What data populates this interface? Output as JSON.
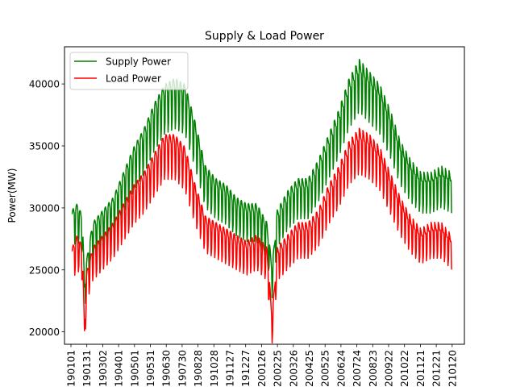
{
  "chart_data": {
    "type": "line",
    "title": "Supply & Load Power",
    "xlabel": "",
    "ylabel": "Power(MW)",
    "ylim": [
      19000,
      43000
    ],
    "yticks": [
      20000,
      25000,
      30000,
      35000,
      40000
    ],
    "ytick_labels": [
      "20000",
      "25000",
      "30000",
      "35000",
      "40000"
    ],
    "xtick_labels": [
      "190101",
      "190131",
      "190302",
      "190401",
      "190501",
      "190531",
      "190630",
      "190730",
      "190828",
      "191028",
      "191127",
      "191227",
      "200126",
      "200225",
      "200326",
      "200425",
      "200525",
      "200624",
      "200724",
      "200823",
      "200922",
      "201022",
      "201121",
      "201221",
      "210120"
    ],
    "legend": {
      "placement": "top-left",
      "entries": [
        "Supply Power",
        "Load Power"
      ]
    },
    "grid": false,
    "series": [
      {
        "name": "Supply Power",
        "color": "#008000",
        "anchors": [
          [
            0,
            29500
          ],
          [
            10,
            30000
          ],
          [
            20,
            29000
          ],
          [
            24,
            23500
          ],
          [
            28,
            25500
          ],
          [
            40,
            28500
          ],
          [
            60,
            29500
          ],
          [
            80,
            30500
          ],
          [
            100,
            32500
          ],
          [
            120,
            34500
          ],
          [
            140,
            36000
          ],
          [
            160,
            38000
          ],
          [
            180,
            39500
          ],
          [
            200,
            40000
          ],
          [
            220,
            39500
          ],
          [
            240,
            36500
          ],
          [
            260,
            33000
          ],
          [
            280,
            32000
          ],
          [
            300,
            31500
          ],
          [
            320,
            30500
          ],
          [
            340,
            30000
          ],
          [
            360,
            30000
          ],
          [
            380,
            28500
          ],
          [
            390,
            25000
          ],
          [
            400,
            29500
          ],
          [
            420,
            31000
          ],
          [
            440,
            32000
          ],
          [
            460,
            32000
          ],
          [
            480,
            33500
          ],
          [
            500,
            35500
          ],
          [
            520,
            37500
          ],
          [
            540,
            40000
          ],
          [
            560,
            41500
          ],
          [
            580,
            40500
          ],
          [
            600,
            39500
          ],
          [
            620,
            37500
          ],
          [
            640,
            35000
          ],
          [
            660,
            33500
          ],
          [
            680,
            32500
          ],
          [
            700,
            32500
          ],
          [
            720,
            33000
          ],
          [
            740,
            32500
          ]
        ]
      },
      {
        "name": "Load Power",
        "color": "#ff0000",
        "anchors": [
          [
            0,
            26500
          ],
          [
            10,
            27500
          ],
          [
            20,
            26500
          ],
          [
            24,
            20000
          ],
          [
            28,
            24500
          ],
          [
            40,
            26500
          ],
          [
            60,
            27500
          ],
          [
            80,
            28500
          ],
          [
            100,
            30000
          ],
          [
            120,
            31500
          ],
          [
            140,
            32500
          ],
          [
            160,
            34000
          ],
          [
            180,
            35500
          ],
          [
            200,
            35500
          ],
          [
            220,
            34500
          ],
          [
            240,
            31500
          ],
          [
            260,
            29000
          ],
          [
            280,
            28500
          ],
          [
            300,
            28000
          ],
          [
            320,
            27500
          ],
          [
            340,
            27000
          ],
          [
            360,
            27500
          ],
          [
            380,
            26500
          ],
          [
            390,
            21000
          ],
          [
            400,
            26500
          ],
          [
            420,
            27500
          ],
          [
            440,
            28500
          ],
          [
            460,
            28500
          ],
          [
            480,
            29500
          ],
          [
            500,
            31500
          ],
          [
            520,
            33000
          ],
          [
            540,
            35000
          ],
          [
            560,
            36000
          ],
          [
            580,
            35500
          ],
          [
            600,
            34500
          ],
          [
            620,
            32500
          ],
          [
            640,
            30500
          ],
          [
            660,
            29000
          ],
          [
            680,
            28000
          ],
          [
            700,
            28500
          ],
          [
            720,
            28500
          ],
          [
            740,
            27500
          ]
        ]
      }
    ]
  }
}
